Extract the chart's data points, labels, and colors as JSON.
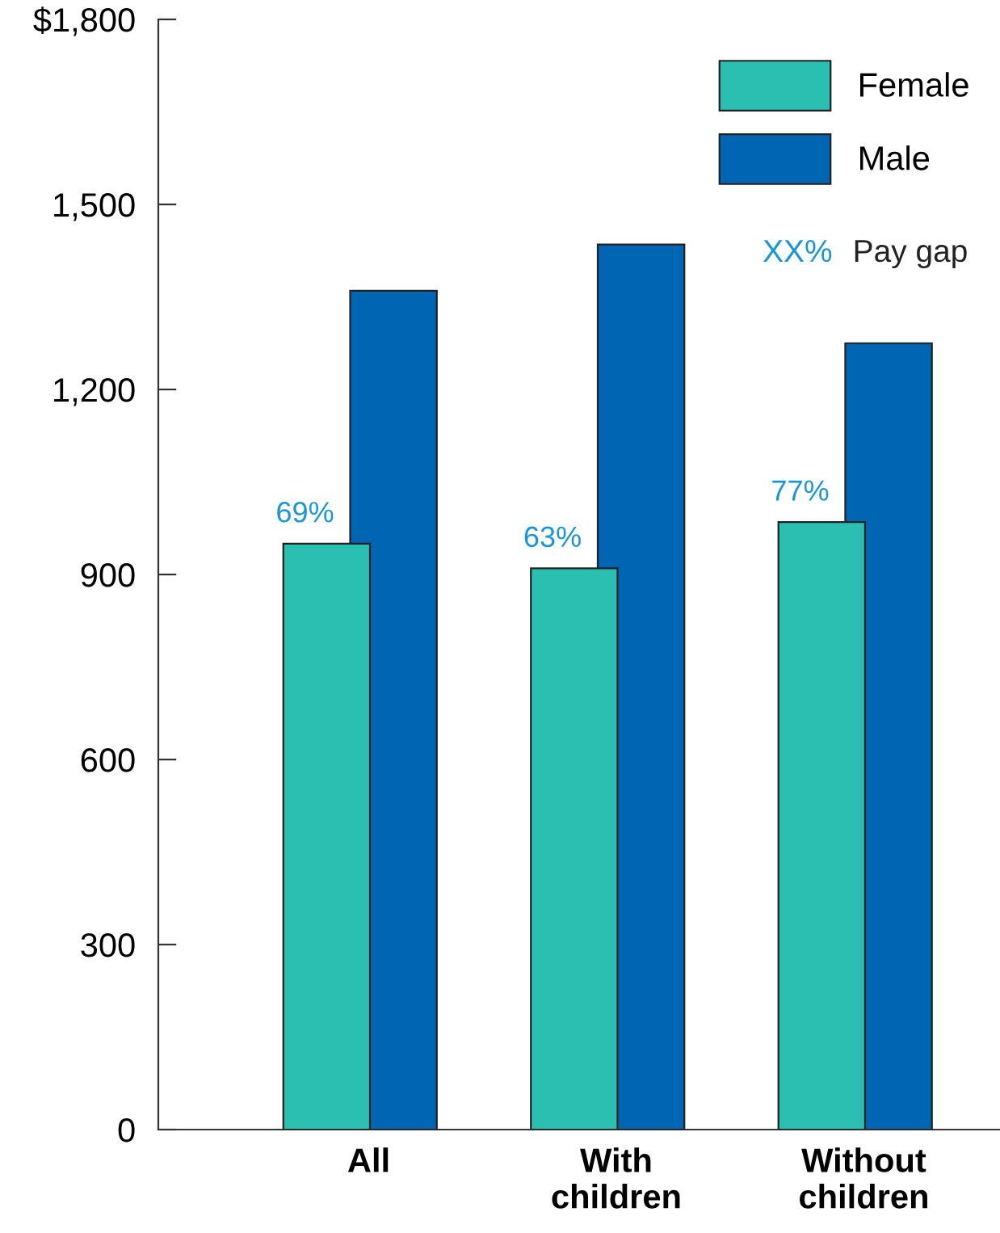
{
  "chart_data": {
    "type": "bar",
    "categories": [
      "All",
      "With\nchildren",
      "Without\nchildren"
    ],
    "series": [
      {
        "name": "Female",
        "color": "#2bbfb1",
        "values": [
          950,
          910,
          985
        ]
      },
      {
        "name": "Male",
        "color": "#0066b3",
        "values": [
          1360,
          1435,
          1275
        ]
      }
    ],
    "ylim": [
      0,
      1800
    ],
    "yticks": [
      0,
      {
        "value": 300,
        "label": "300"
      },
      {
        "value": 600,
        "label": "600"
      },
      {
        "value": 900,
        "label": "900"
      },
      {
        "value": 1200,
        "label": "1,200"
      },
      {
        "value": 1500,
        "label": "1,500"
      },
      {
        "value": 1800,
        "label": "$1,800"
      }
    ],
    "annotations": [
      "XX%",
      "Pay gap",
      {
        "text": "69%",
        "x": "All",
        "y": 950
      },
      {
        "text": "63%",
        "x": "With\nchildren",
        "y": 910
      },
      {
        "text": "77%",
        "x": "Without\nchildren",
        "y": 985
      }
    ],
    "legend": "top right",
    "grid": false
  }
}
